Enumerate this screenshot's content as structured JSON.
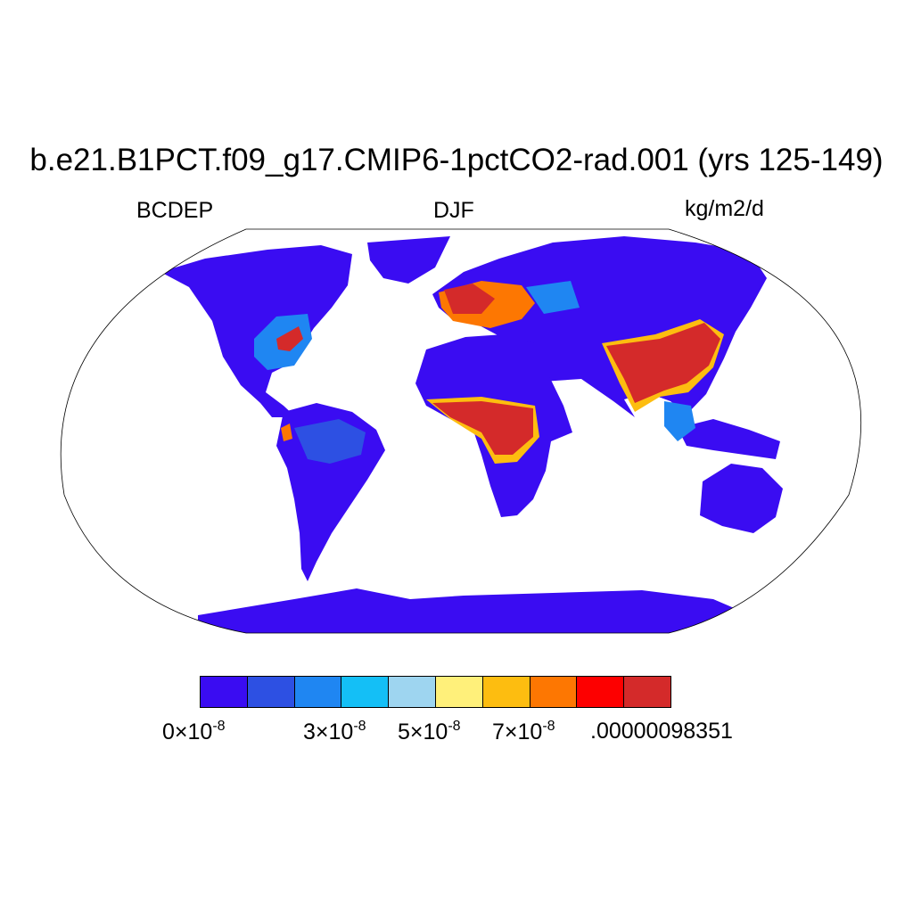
{
  "header": {
    "title": "b.e21.B1PCT.f09_g17.CMIP6-1pctCO2-rad.001 (yrs 125-149)",
    "variable": "BCDEP",
    "season": "DJF",
    "units": "kg/m2/d"
  },
  "map": {
    "projection": "Robinson",
    "background": "#ffffff",
    "colormap": [
      "#3a0cf2",
      "#2d50e3",
      "#1f86f2",
      "#14bff6",
      "#9ed5f0",
      "#fff07a",
      "#fdbd10",
      "#fd7702",
      "#fd0000",
      "#d42a2a"
    ]
  },
  "colorbar": {
    "labels": [
      {
        "mantissa": "0",
        "exponent": "-8"
      },
      {
        "mantissa": "3",
        "exponent": "-8"
      },
      {
        "mantissa": "5",
        "exponent": "-8"
      },
      {
        "mantissa": "7",
        "exponent": "-8"
      },
      {
        "text": ".00000098351"
      }
    ]
  }
}
